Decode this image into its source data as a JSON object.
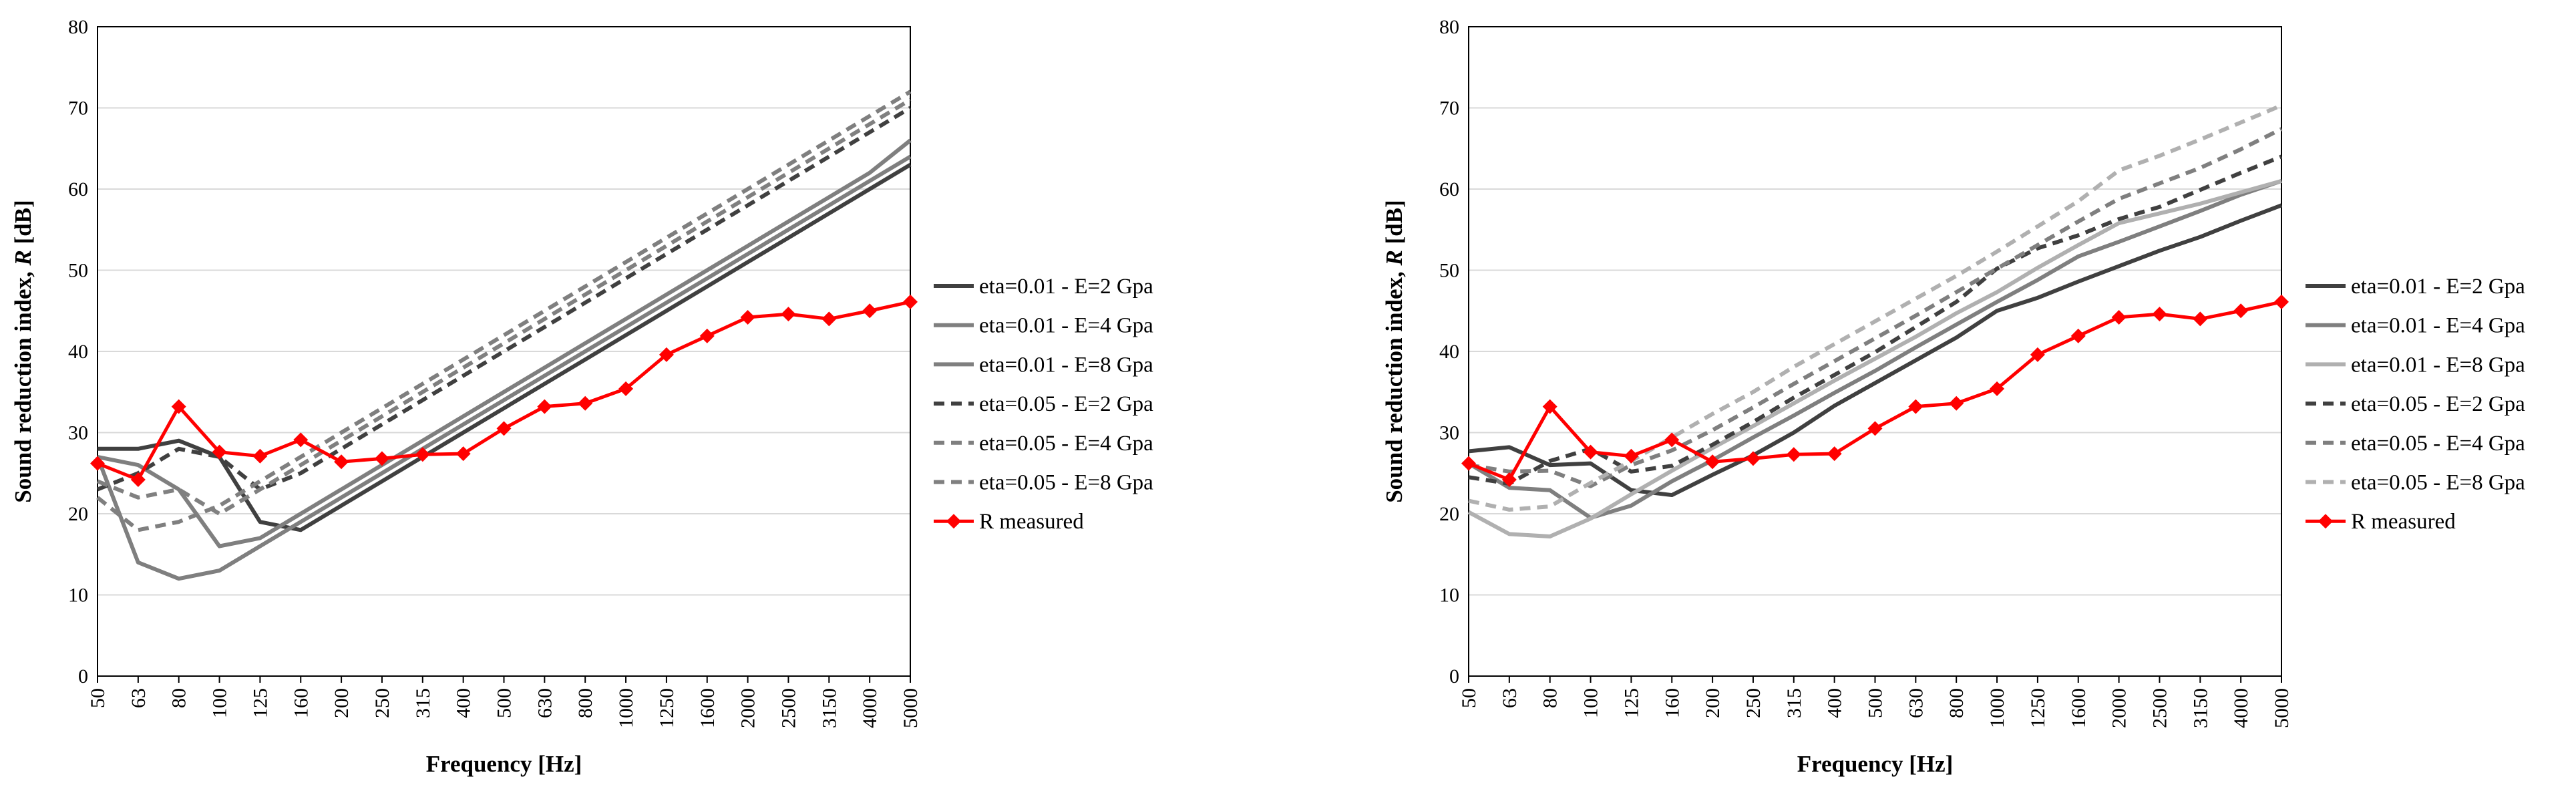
{
  "chart_data": [
    {
      "type": "line",
      "title": "",
      "xlabel": "Frequency [Hz]",
      "ylabel_main": "Sound reduction index, ",
      "ylabel_italic": "R",
      "ylabel_unit": " [dB]",
      "ylim": [
        0,
        80
      ],
      "yticks": [
        "0",
        "10",
        "20",
        "30",
        "40",
        "50",
        "60",
        "70",
        "80"
      ],
      "categories": [
        "50",
        "63",
        "80",
        "100",
        "125",
        "160",
        "200",
        "250",
        "315",
        "400",
        "500",
        "630",
        "800",
        "1000",
        "1250",
        "1600",
        "2000",
        "2500",
        "3150",
        "4000",
        "5000"
      ],
      "grid": "horizontal",
      "legend_position": "right",
      "series": [
        {
          "name": "eta=0.01 - E=2 Gpa",
          "color": "#404040",
          "dash": "solid",
          "values": [
            28,
            28,
            29,
            27,
            19,
            18,
            21,
            24,
            27,
            30,
            33,
            36,
            39,
            42,
            45,
            48,
            51,
            54,
            57,
            60,
            63
          ]
        },
        {
          "name": "eta=0.01 - E=4 Gpa",
          "color": "#7f7f7f",
          "dash": "solid",
          "values": [
            27,
            14,
            12,
            13,
            16,
            19,
            22,
            25,
            28,
            31,
            34,
            37,
            40,
            43,
            46,
            49,
            52,
            55,
            58,
            61,
            64
          ]
        },
        {
          "name": "eta=0.01 - E=8 Gpa",
          "color": "#7f7f7f",
          "dash": "solid",
          "values": [
            27,
            26,
            23,
            16,
            17,
            20,
            23,
            26,
            29,
            32,
            35,
            38,
            41,
            44,
            47,
            50,
            53,
            56,
            59,
            62,
            66
          ]
        },
        {
          "name": "eta=0.05 - E=2 Gpa",
          "color": "#404040",
          "dash": "dashed",
          "values": [
            23,
            25,
            28,
            27,
            23,
            25,
            28,
            31,
            34,
            37,
            40,
            43,
            46,
            49,
            52,
            55,
            58,
            61,
            64,
            67,
            70
          ]
        },
        {
          "name": "eta=0.05 - E=4 Gpa",
          "color": "#7f7f7f",
          "dash": "dashed",
          "values": [
            22,
            18,
            19,
            21,
            24,
            27,
            30,
            33,
            36,
            39,
            42,
            45,
            48,
            51,
            54,
            57,
            60,
            63,
            66,
            69,
            72
          ]
        },
        {
          "name": "eta=0.05 - E=8 Gpa",
          "color": "#808080",
          "dash": "dashed",
          "values": [
            24,
            22,
            23,
            20,
            23,
            26,
            29,
            32,
            35,
            38,
            41,
            44,
            47,
            50,
            53,
            56,
            59,
            62,
            65,
            68,
            71
          ]
        },
        {
          "name": "R measured",
          "color": "#ff0000",
          "dash": "solid",
          "marker": "diamond",
          "values": [
            26.2,
            24.2,
            33.2,
            27.6,
            27.1,
            29.1,
            26.4,
            26.8,
            27.3,
            27.4,
            30.5,
            33.2,
            33.6,
            35.4,
            39.6,
            41.9,
            44.2,
            44.6,
            44.0,
            45.0,
            46.1
          ]
        }
      ]
    },
    {
      "type": "line",
      "title": "",
      "xlabel": "Frequency [Hz]",
      "ylabel_main": "Sound reduction index, ",
      "ylabel_italic": "R",
      "ylabel_unit": " [dB]",
      "ylim": [
        0,
        80
      ],
      "yticks": [
        "0",
        "10",
        "20",
        "30",
        "40",
        "50",
        "60",
        "70",
        "80"
      ],
      "categories": [
        "50",
        "63",
        "80",
        "100",
        "125",
        "160",
        "200",
        "250",
        "315",
        "400",
        "500",
        "630",
        "800",
        "1000",
        "1250",
        "1600",
        "2000",
        "2500",
        "3150",
        "4000",
        "5000"
      ],
      "grid": "horizontal",
      "legend_position": "right",
      "series": [
        {
          "name": "eta=0.01 - E=2 Gpa",
          "color": "#404040",
          "dash": "solid",
          "values": [
            27.7,
            28.2,
            26.0,
            26.2,
            22.9,
            22.3,
            24.8,
            27.2,
            30.0,
            33.3,
            36.1,
            38.9,
            41.7,
            45.0,
            46.6,
            48.6,
            50.5,
            52.4,
            54.1,
            56.1,
            58.0
          ]
        },
        {
          "name": "eta=0.01 - E=4 Gpa",
          "color": "#7f7f7f",
          "dash": "solid",
          "values": [
            26.2,
            23.2,
            22.9,
            19.5,
            21.0,
            24.0,
            26.6,
            29.4,
            32.1,
            34.9,
            37.6,
            40.5,
            43.3,
            46.1,
            48.8,
            51.7,
            53.5,
            55.4,
            57.3,
            59.3,
            61.0
          ]
        },
        {
          "name": "eta=0.01 - E=8 Gpa",
          "color": "#b0b0b0",
          "dash": "solid",
          "values": [
            20.2,
            17.5,
            17.2,
            19.4,
            22.4,
            25.3,
            28.1,
            30.8,
            33.6,
            36.4,
            39.1,
            41.8,
            44.7,
            47.3,
            50.3,
            53.1,
            55.8,
            57.0,
            58.2,
            59.6,
            61.0
          ]
        },
        {
          "name": "eta=0.05 - E=2 Gpa",
          "color": "#404040",
          "dash": "dashed",
          "values": [
            24.5,
            23.7,
            26.5,
            28.0,
            25.2,
            25.9,
            28.5,
            31.3,
            34.3,
            37.1,
            39.9,
            43.0,
            46.1,
            50.2,
            52.7,
            54.3,
            56.3,
            57.8,
            59.9,
            62.0,
            64.0
          ]
        },
        {
          "name": "eta=0.05 - E=4 Gpa",
          "color": "#7f7f7f",
          "dash": "dashed",
          "values": [
            26.0,
            25.2,
            25.3,
            23.4,
            26.0,
            27.8,
            30.3,
            33.1,
            36.0,
            38.8,
            41.6,
            44.4,
            47.3,
            50.2,
            53.1,
            56.0,
            58.8,
            60.7,
            62.6,
            64.9,
            67.4
          ]
        },
        {
          "name": "eta=0.05 - E=8 Gpa",
          "color": "#b0b0b0",
          "dash": "dashed",
          "values": [
            21.6,
            20.5,
            20.9,
            23.8,
            26.5,
            29.4,
            32.3,
            35.0,
            38.1,
            40.9,
            43.7,
            46.5,
            49.3,
            52.3,
            55.4,
            58.5,
            62.3,
            64.1,
            66.1,
            68.2,
            70.3
          ]
        },
        {
          "name": "R measured",
          "color": "#ff0000",
          "dash": "solid",
          "marker": "diamond",
          "values": [
            26.2,
            24.2,
            33.2,
            27.6,
            27.1,
            29.1,
            26.4,
            26.8,
            27.3,
            27.4,
            30.5,
            33.2,
            33.6,
            35.4,
            39.6,
            41.9,
            44.2,
            44.6,
            44.0,
            45.0,
            46.1
          ]
        }
      ]
    }
  ]
}
